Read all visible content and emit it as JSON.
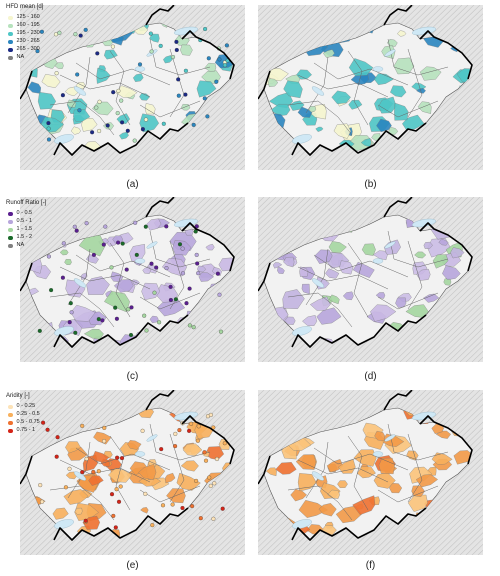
{
  "captions": [
    "(a)",
    "(b)",
    "(c)",
    "(d)",
    "(e)",
    "(f)"
  ],
  "legends": {
    "hfd": {
      "title": "HFD mean [d]",
      "items": [
        {
          "label": "125 - 160",
          "color": "#f6f6cf"
        },
        {
          "label": "160 - 195",
          "color": "#b6e2bd"
        },
        {
          "label": "195 - 230",
          "color": "#4ec6c6"
        },
        {
          "label": "230 - 265",
          "color": "#2b86bf"
        },
        {
          "label": "265 - 300",
          "color": "#1c2a84"
        },
        {
          "label": "NA",
          "color": "#808080"
        }
      ]
    },
    "runoff": {
      "title": "Runoff Ratio [-]",
      "items": [
        {
          "label": "0 - 0.5",
          "color": "#5a1f8f"
        },
        {
          "label": "0.5 - 1",
          "color": "#b7a6dc"
        },
        {
          "label": "1 - 1.5",
          "color": "#a5d6a0"
        },
        {
          "label": "1.5 - 2",
          "color": "#1a6a2a"
        },
        {
          "label": "NA",
          "color": "#808080"
        }
      ]
    },
    "aridity": {
      "title": "Aridity [-]",
      "items": [
        {
          "label": "0 - 0.25",
          "color": "#fde3b8"
        },
        {
          "label": "0.25 - 0.5",
          "color": "#f8b05c"
        },
        {
          "label": "0.5 - 0.75",
          "color": "#ef7130"
        },
        {
          "label": "0.75 - 1",
          "color": "#d42418"
        }
      ]
    }
  },
  "fill_colors": {
    "hfd": [
      "#f6f6cf",
      "#b6e2bd",
      "#4ec6c6",
      "#2b86bf",
      "#b6e2bd",
      "#4ec6c6"
    ],
    "runoff": [
      "#c9b9e4",
      "#b7a6dc",
      "#c3b4e0",
      "#a5d6a0",
      "#b7a6dc",
      "#cbbde6"
    ],
    "aridity": [
      "#f8b05c",
      "#f29a48",
      "#f8b05c",
      "#ef7130",
      "#fbc47a",
      "#f29a48"
    ]
  },
  "lake_color": "#cfe8f5",
  "border_color": "#000000"
}
